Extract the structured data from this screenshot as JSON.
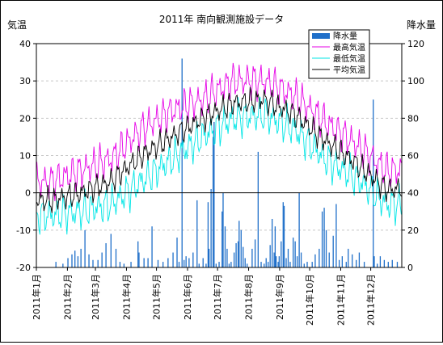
{
  "chart_data": {
    "type": "line",
    "title": "2011年 南向観測施設データ",
    "ylabel_left": "気温",
    "ylabel_right": "降水量",
    "ylim_left": [
      -20,
      40
    ],
    "ylim_right": [
      0,
      120
    ],
    "yticks_left": [
      "-20",
      "-10",
      "0",
      "10",
      "20",
      "30",
      "40"
    ],
    "yticks_right": [
      "0",
      "20",
      "40",
      "60",
      "80",
      "100",
      "120"
    ],
    "x_axis": "date",
    "x_start": "2011-01-01",
    "x_end": "2011-12-31",
    "month_labels": [
      "2011年1月",
      "2011年2月",
      "2011年3月",
      "2011年4月",
      "2011年5月",
      "2011年6月",
      "2011年7月",
      "2011年8月",
      "2011年9月",
      "2011年10月",
      "2011年11月",
      "2011年12月"
    ],
    "grid": true,
    "legend_position": "top-right",
    "legend": [
      "降水量",
      "最高気温",
      "最低気温",
      "平均気温"
    ],
    "colors": {
      "precip": "#1f6fc9",
      "max_temp": "#e600e6",
      "min_temp": "#00e6e6",
      "avg_temp": "#000000",
      "grid": "#c8c8c8"
    },
    "monthly_mean_temp": [
      {
        "month": "2011-01",
        "max": 3,
        "min": -6,
        "avg": -2
      },
      {
        "month": "2011-02",
        "max": 6,
        "min": -5,
        "avg": 0
      },
      {
        "month": "2011-03",
        "max": 9,
        "min": -3,
        "avg": 3
      },
      {
        "month": "2011-04",
        "max": 17,
        "min": 3,
        "avg": 10
      },
      {
        "month": "2011-05",
        "max": 22,
        "min": 9,
        "avg": 15
      },
      {
        "month": "2011-06",
        "max": 25,
        "min": 15,
        "avg": 20
      },
      {
        "month": "2011-07",
        "max": 30,
        "min": 20,
        "avg": 24
      },
      {
        "month": "2011-08",
        "max": 30,
        "min": 21,
        "avg": 25
      },
      {
        "month": "2011-09",
        "max": 26,
        "min": 17,
        "avg": 21
      },
      {
        "month": "2011-10",
        "max": 19,
        "min": 9,
        "avg": 14
      },
      {
        "month": "2011-11",
        "max": 13,
        "min": 4,
        "avg": 8
      },
      {
        "month": "2011-12",
        "max": 6,
        "min": -3,
        "avg": 1
      }
    ],
    "precipitation": [
      {
        "date": "2011-01-20",
        "value": 3
      },
      {
        "date": "2011-01-27",
        "value": 2
      },
      {
        "date": "2011-02-01",
        "value": 5
      },
      {
        "date": "2011-02-05",
        "value": 7
      },
      {
        "date": "2011-02-08",
        "value": 9
      },
      {
        "date": "2011-02-11",
        "value": 6
      },
      {
        "date": "2011-02-14",
        "value": 10
      },
      {
        "date": "2011-02-18",
        "value": 20
      },
      {
        "date": "2011-02-22",
        "value": 7
      },
      {
        "date": "2011-02-26",
        "value": 4
      },
      {
        "date": "2011-03-03",
        "value": 4
      },
      {
        "date": "2011-03-07",
        "value": 8
      },
      {
        "date": "2011-03-11",
        "value": 13
      },
      {
        "date": "2011-03-16",
        "value": 18
      },
      {
        "date": "2011-03-21",
        "value": 10
      },
      {
        "date": "2011-03-25",
        "value": 3
      },
      {
        "date": "2011-03-29",
        "value": 2
      },
      {
        "date": "2011-04-05",
        "value": 3
      },
      {
        "date": "2011-04-12",
        "value": 14
      },
      {
        "date": "2011-04-13",
        "value": 8
      },
      {
        "date": "2011-04-18",
        "value": 5
      },
      {
        "date": "2011-04-22",
        "value": 5
      },
      {
        "date": "2011-04-26",
        "value": 22
      },
      {
        "date": "2011-05-02",
        "value": 4
      },
      {
        "date": "2011-05-07",
        "value": 3
      },
      {
        "date": "2011-05-12",
        "value": 5
      },
      {
        "date": "2011-05-17",
        "value": 8
      },
      {
        "date": "2011-05-21",
        "value": 16
      },
      {
        "date": "2011-05-23",
        "value": 3
      },
      {
        "date": "2011-05-26",
        "value": 112
      },
      {
        "date": "2011-05-28",
        "value": 4
      },
      {
        "date": "2011-05-30",
        "value": 6
      },
      {
        "date": "2011-06-02",
        "value": 5
      },
      {
        "date": "2011-06-06",
        "value": 8
      },
      {
        "date": "2011-06-10",
        "value": 36
      },
      {
        "date": "2011-06-12",
        "value": 2
      },
      {
        "date": "2011-06-16",
        "value": 5
      },
      {
        "date": "2011-06-19",
        "value": 2
      },
      {
        "date": "2011-06-21",
        "value": 35
      },
      {
        "date": "2011-06-22",
        "value": 10
      },
      {
        "date": "2011-06-24",
        "value": 42
      },
      {
        "date": "2011-06-26",
        "value": 70
      },
      {
        "date": "2011-06-27",
        "value": 78
      },
      {
        "date": "2011-06-29",
        "value": 2
      },
      {
        "date": "2011-07-02",
        "value": 3
      },
      {
        "date": "2011-07-05",
        "value": 30
      },
      {
        "date": "2011-07-06",
        "value": 40
      },
      {
        "date": "2011-07-08",
        "value": 22
      },
      {
        "date": "2011-07-10",
        "value": 10
      },
      {
        "date": "2011-07-12",
        "value": 2
      },
      {
        "date": "2011-07-14",
        "value": 3
      },
      {
        "date": "2011-07-17",
        "value": 8
      },
      {
        "date": "2011-07-19",
        "value": 13
      },
      {
        "date": "2011-07-21",
        "value": 14
      },
      {
        "date": "2011-07-22",
        "value": 25
      },
      {
        "date": "2011-07-24",
        "value": 20
      },
      {
        "date": "2011-07-26",
        "value": 11
      },
      {
        "date": "2011-07-28",
        "value": 5
      },
      {
        "date": "2011-07-30",
        "value": 2
      },
      {
        "date": "2011-08-04",
        "value": 10
      },
      {
        "date": "2011-08-07",
        "value": 15
      },
      {
        "date": "2011-08-10",
        "value": 62
      },
      {
        "date": "2011-08-13",
        "value": 3
      },
      {
        "date": "2011-08-16",
        "value": 2
      },
      {
        "date": "2011-08-18",
        "value": 5
      },
      {
        "date": "2011-08-20",
        "value": 3
      },
      {
        "date": "2011-08-22",
        "value": 12
      },
      {
        "date": "2011-08-24",
        "value": 26
      },
      {
        "date": "2011-08-26",
        "value": 8
      },
      {
        "date": "2011-08-27",
        "value": 22
      },
      {
        "date": "2011-08-28",
        "value": 6
      },
      {
        "date": "2011-08-30",
        "value": 3
      },
      {
        "date": "2011-08-31",
        "value": 6
      },
      {
        "date": "2011-09-02",
        "value": 14
      },
      {
        "date": "2011-09-04",
        "value": 35
      },
      {
        "date": "2011-09-05",
        "value": 33
      },
      {
        "date": "2011-09-07",
        "value": 5
      },
      {
        "date": "2011-09-09",
        "value": 10
      },
      {
        "date": "2011-09-11",
        "value": 3
      },
      {
        "date": "2011-09-14",
        "value": 16
      },
      {
        "date": "2011-09-16",
        "value": 14
      },
      {
        "date": "2011-09-18",
        "value": 6
      },
      {
        "date": "2011-09-20",
        "value": 40
      },
      {
        "date": "2011-09-22",
        "value": 8
      },
      {
        "date": "2011-09-25",
        "value": 2
      },
      {
        "date": "2011-09-28",
        "value": 3
      },
      {
        "date": "2011-10-03",
        "value": 3
      },
      {
        "date": "2011-10-06",
        "value": 7
      },
      {
        "date": "2011-10-10",
        "value": 10
      },
      {
        "date": "2011-10-13",
        "value": 30
      },
      {
        "date": "2011-10-15",
        "value": 32
      },
      {
        "date": "2011-10-17",
        "value": 20
      },
      {
        "date": "2011-10-20",
        "value": 8
      },
      {
        "date": "2011-10-24",
        "value": 17
      },
      {
        "date": "2011-10-27",
        "value": 34
      },
      {
        "date": "2011-10-30",
        "value": 4
      },
      {
        "date": "2011-11-02",
        "value": 6
      },
      {
        "date": "2011-11-06",
        "value": 3
      },
      {
        "date": "2011-11-08",
        "value": 10
      },
      {
        "date": "2011-11-12",
        "value": 7
      },
      {
        "date": "2011-11-16",
        "value": 4
      },
      {
        "date": "2011-11-19",
        "value": 8
      },
      {
        "date": "2011-11-24",
        "value": 3
      },
      {
        "date": "2011-12-03",
        "value": 90
      },
      {
        "date": "2011-12-04",
        "value": 6
      },
      {
        "date": "2011-12-07",
        "value": 2
      },
      {
        "date": "2011-12-10",
        "value": 6
      },
      {
        "date": "2011-12-14",
        "value": 4
      },
      {
        "date": "2011-12-18",
        "value": 3
      },
      {
        "date": "2011-12-22",
        "value": 4
      },
      {
        "date": "2011-12-27",
        "value": 3
      }
    ]
  }
}
